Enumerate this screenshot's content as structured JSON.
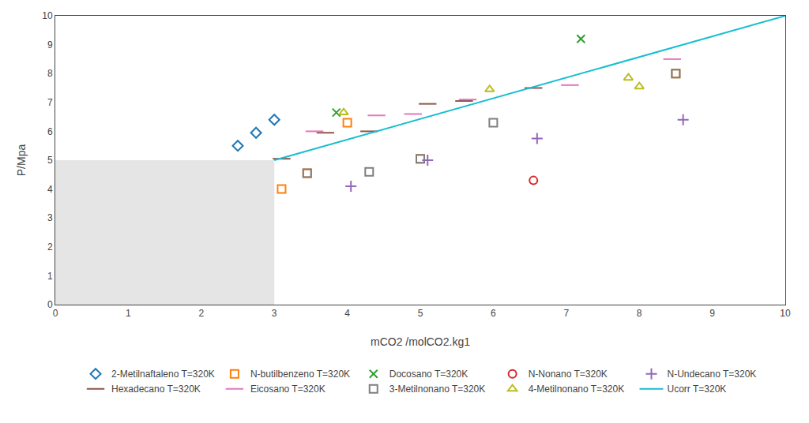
{
  "chart_data": {
    "type": "scatter",
    "xlabel": "mCO2 /molCO2.kg1",
    "ylabel": "P/Mpa",
    "xlim": [
      0,
      10
    ],
    "ylim": [
      0,
      10
    ],
    "xticks": [
      0,
      1,
      2,
      3,
      4,
      5,
      6,
      7,
      8,
      9,
      10
    ],
    "yticks": [
      0,
      1,
      2,
      3,
      4,
      5,
      6,
      7,
      8,
      9,
      10
    ],
    "grid": false,
    "legend": "bottom",
    "region": {
      "x": [
        0,
        3.0
      ],
      "y": [
        0,
        5.0
      ]
    },
    "series": [
      {
        "name": "2-Metilnaftaleno T=320K",
        "marker": "diamond",
        "x": [
          2.5,
          2.75,
          3.0
        ],
        "y": [
          5.5,
          5.95,
          6.4
        ]
      },
      {
        "name": "N-butilbenzeno T=320K",
        "marker": "square",
        "x": [
          3.1,
          3.45,
          4.0,
          5.0,
          8.5
        ],
        "y": [
          4.0,
          4.55,
          6.3,
          5.05,
          8.0
        ]
      },
      {
        "name": "Docosano T=320K",
        "marker": "x",
        "x": [
          3.85,
          7.2
        ],
        "y": [
          6.65,
          9.2
        ]
      },
      {
        "name": "N-Nonano T=320K",
        "marker": "circle",
        "x": [
          6.55
        ],
        "y": [
          4.3
        ]
      },
      {
        "name": "N-Undecano T=320K",
        "marker": "cross",
        "x": [
          4.05,
          5.1,
          6.6,
          8.6
        ],
        "y": [
          4.1,
          5.0,
          5.75,
          6.4
        ]
      },
      {
        "name": "Hexadecano T=320K",
        "marker": "dash",
        "x": [
          3.1,
          3.7,
          4.3,
          5.1,
          5.6,
          6.55
        ],
        "y": [
          5.05,
          5.95,
          6.0,
          6.95,
          7.05,
          7.5
        ]
      },
      {
        "name": "Eicosano T=320K",
        "marker": "dash",
        "x": [
          3.55,
          4.4,
          4.9,
          5.65,
          7.05,
          8.45
        ],
        "y": [
          6.0,
          6.55,
          6.6,
          7.1,
          7.6,
          8.5
        ]
      },
      {
        "name": "3-Metilnonano T=320K",
        "marker": "square",
        "x": [
          3.45,
          4.3,
          5.0,
          6.0,
          8.5
        ],
        "y": [
          4.55,
          4.6,
          5.05,
          6.3,
          8.0
        ]
      },
      {
        "name": "4-Metilnonano T=320K",
        "marker": "triangle-up",
        "x": [
          3.95,
          5.95,
          7.85,
          8.0
        ],
        "y": [
          6.65,
          7.45,
          7.85,
          7.55
        ]
      },
      {
        "name": "Ucorr T=320K",
        "type": "line",
        "x": [
          3.0,
          10.0
        ],
        "y": [
          5.0,
          10.0
        ]
      }
    ]
  }
}
